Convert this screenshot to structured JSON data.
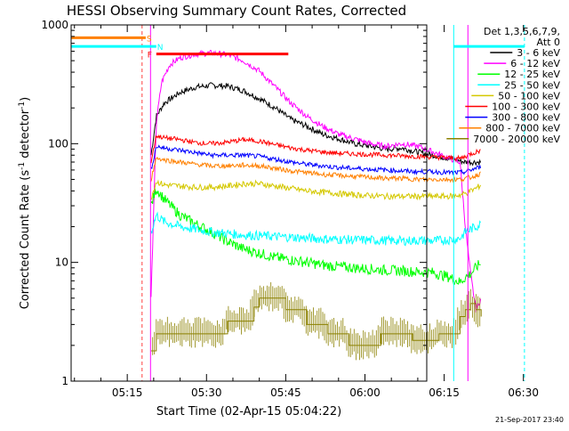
{
  "chart_data": {
    "type": "line",
    "title": "HESSI Observing Summary Count Rates, Corrected",
    "xlabel": "Start Time (02-Apr-15 05:04:22)",
    "ylabel_main": "Corrected Count Rate (s",
    "ylabel_sup1": "-1",
    "ylabel_mid": " detector",
    "ylabel_sup2": "-1",
    "ylabel_end": ")",
    "y_scale": "log",
    "ylim": [
      1,
      1000
    ],
    "xlim_min": [
      4.37,
      71.7
    ],
    "x_ticks": [
      {
        "label": "05:15",
        "min": 15
      },
      {
        "label": "05:30",
        "min": 30
      },
      {
        "label": "05:45",
        "min": 45
      },
      {
        "label": "06:00",
        "min": 60
      },
      {
        "label": "06:15",
        "min": 75
      },
      {
        "label": "06:30",
        "min": 90
      }
    ],
    "y_ticks": [
      {
        "label": "1",
        "value": 1
      },
      {
        "label": "10",
        "value": 10
      },
      {
        "label": "100",
        "value": 100
      },
      {
        "label": "1000",
        "value": 1000
      }
    ],
    "legend_header": [
      "Det 1,3,5,6,7,9,",
      "Att 0"
    ],
    "legend_position": "right",
    "series": [
      {
        "name": "3 - 6 keV",
        "color": "#000000",
        "x": [
          19.5,
          20.5,
          22,
          25,
          28,
          31,
          34,
          37,
          40,
          43,
          46,
          49,
          52,
          55,
          58,
          61,
          64,
          67,
          70,
          73,
          76,
          79,
          82
        ],
        "y": [
          80,
          170,
          220,
          270,
          300,
          310,
          305,
          280,
          240,
          200,
          160,
          140,
          120,
          110,
          100,
          95,
          90,
          92,
          85,
          80,
          75,
          70,
          70
        ]
      },
      {
        "name": "6 - 12 keV",
        "color": "#ff00ff",
        "x": [
          19.5,
          20.5,
          21.5,
          23,
          25,
          28,
          31,
          34,
          37,
          40,
          43,
          46,
          49,
          52,
          55,
          58,
          61,
          64,
          67,
          70,
          73,
          76,
          78,
          79,
          80,
          81,
          82
        ],
        "y": [
          5,
          150,
          330,
          460,
          530,
          570,
          580,
          560,
          500,
          410,
          300,
          220,
          170,
          140,
          120,
          110,
          100,
          95,
          100,
          95,
          85,
          75,
          70,
          20,
          8,
          4,
          5
        ]
      },
      {
        "name": "12 - 25 keV",
        "color": "#00ff00",
        "x": [
          19.5,
          20.5,
          22,
          25,
          28,
          31,
          34,
          37,
          40,
          43,
          46,
          49,
          52,
          55,
          58,
          61,
          64,
          67,
          70,
          73,
          76,
          78,
          79,
          80,
          81,
          82
        ],
        "y": [
          30,
          42,
          34,
          25,
          21,
          18,
          15,
          13,
          12,
          11,
          10.5,
          10,
          9.5,
          9.2,
          9,
          8.8,
          8.6,
          8.5,
          8.3,
          8.2,
          7.5,
          6.8,
          7.5,
          8,
          9,
          10
        ]
      },
      {
        "name": "25 - 50 keV",
        "color": "#00ffff",
        "x": [
          19.5,
          20.5,
          22,
          25,
          28,
          31,
          34,
          37,
          40,
          43,
          46,
          49,
          52,
          55,
          58,
          61,
          64,
          67,
          70,
          73,
          76,
          78,
          79,
          80,
          81,
          82
        ],
        "y": [
          18,
          25,
          22,
          20,
          19,
          18,
          17.5,
          17,
          16.8,
          16.5,
          16.3,
          16,
          15.8,
          15.6,
          15.5,
          15.4,
          15.3,
          15.2,
          15.3,
          15.2,
          15.5,
          16,
          18,
          19,
          20,
          21
        ]
      },
      {
        "name": "50 - 100 keV",
        "color": "#d4c800",
        "x": [
          19.5,
          20.5,
          22,
          25,
          28,
          31,
          34,
          37,
          40,
          43,
          46,
          49,
          52,
          55,
          58,
          61,
          64,
          67,
          70,
          73,
          76,
          78,
          79,
          80,
          81,
          82
        ],
        "y": [
          35,
          48,
          45,
          44,
          43,
          43,
          44,
          46,
          46,
          44,
          42,
          40,
          39,
          38,
          37,
          36.5,
          36,
          36,
          36,
          36,
          36,
          37,
          38,
          40,
          42,
          45
        ]
      },
      {
        "name": "100 - 300 keV",
        "color": "#ff0000",
        "x": [
          19.5,
          20.5,
          22,
          25,
          28,
          31,
          34,
          37,
          40,
          43,
          46,
          49,
          52,
          55,
          58,
          61,
          64,
          67,
          70,
          73,
          76,
          78,
          79,
          80,
          81,
          82
        ],
        "y": [
          70,
          117,
          112,
          108,
          102,
          100,
          103,
          108,
          105,
          98,
          92,
          88,
          85,
          83,
          82,
          81,
          80,
          79,
          78,
          77,
          76,
          75,
          78,
          82,
          85,
          88
        ]
      },
      {
        "name": "300 - 800 keV",
        "color": "#0000ff",
        "x": [
          19.5,
          20.5,
          22,
          25,
          28,
          31,
          34,
          37,
          40,
          43,
          46,
          49,
          52,
          55,
          58,
          61,
          64,
          67,
          70,
          73,
          76,
          78,
          79,
          80,
          81,
          82
        ],
        "y": [
          60,
          95,
          92,
          88,
          84,
          80,
          80,
          80,
          78,
          74,
          70,
          67,
          65,
          63,
          62,
          61,
          60,
          59,
          58,
          58,
          57,
          57,
          58,
          60,
          62,
          64
        ]
      },
      {
        "name": "800 - 7000 keV",
        "color": "#ff8000",
        "x": [
          19.5,
          20.5,
          22,
          25,
          28,
          31,
          34,
          37,
          40,
          43,
          46,
          49,
          52,
          55,
          58,
          61,
          64,
          67,
          70,
          73,
          76,
          78,
          79,
          80,
          81,
          82
        ],
        "y": [
          50,
          76,
          73,
          70,
          67,
          65,
          65,
          66,
          65,
          62,
          59,
          57,
          55,
          54,
          53,
          52,
          51,
          51,
          50,
          50,
          50,
          50,
          51,
          52,
          54,
          56
        ]
      },
      {
        "name": "7000 - 20000 keV",
        "color": "#8b8000",
        "x": [
          19.5,
          20.5,
          25,
          30,
          33,
          34,
          38,
          39,
          40,
          44,
          45,
          48,
          49,
          52,
          53,
          56,
          57,
          62,
          63,
          68,
          69,
          73,
          74,
          77,
          78,
          79,
          80,
          81,
          82
        ],
        "y": [
          1.8,
          2.5,
          2.5,
          2.5,
          2.5,
          3.2,
          3.2,
          4.2,
          5,
          5,
          4,
          4,
          3,
          3,
          2.5,
          2.5,
          2,
          2,
          2.5,
          2.5,
          2.2,
          2.2,
          2.5,
          2.5,
          3.5,
          4,
          4.5,
          4,
          3.5
        ]
      }
    ],
    "flags": [
      {
        "label": "S",
        "color": "#ff8000",
        "x_start": 4.37,
        "x_end": 18.5,
        "y": 780
      },
      {
        "label": "N",
        "color": "#00ffff",
        "x_start": 4.37,
        "x_end": 20.5,
        "y": 660
      },
      {
        "label": "F",
        "color": "#ff0000",
        "x_start": 20.5,
        "x_end": 45.5,
        "y": 570
      }
    ],
    "extra_segments": [
      {
        "color": "#00ffff",
        "x_start": 76.8,
        "x_end": 90.2,
        "y": 660
      }
    ],
    "vlines": [
      {
        "color": "#00ffff",
        "x": 4.37,
        "style": "solid"
      },
      {
        "color": "#ff4040",
        "x": 17.8,
        "style": "dashed"
      },
      {
        "color": "#ff00ff",
        "x": 19.4,
        "style": "solid"
      },
      {
        "color": "#00ffff",
        "x": 76.8,
        "style": "solid"
      },
      {
        "color": "#ff00ff",
        "x": 79.5,
        "style": "solid"
      },
      {
        "color": "#00ffff",
        "x": 90.2,
        "style": "dashed"
      }
    ]
  },
  "footer_timestamp": "21-Sep-2017 23:40"
}
